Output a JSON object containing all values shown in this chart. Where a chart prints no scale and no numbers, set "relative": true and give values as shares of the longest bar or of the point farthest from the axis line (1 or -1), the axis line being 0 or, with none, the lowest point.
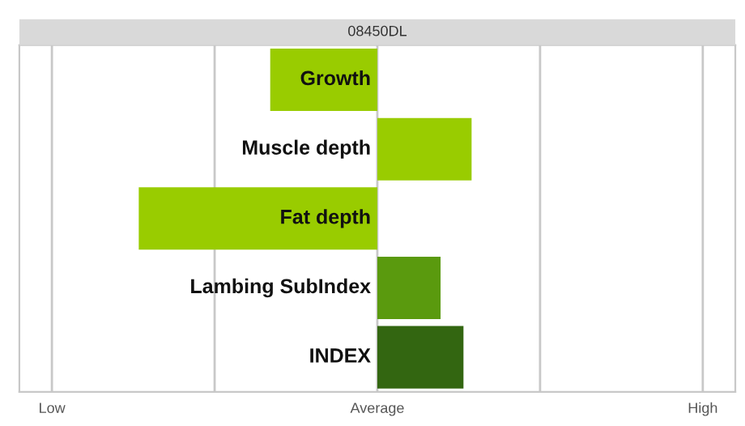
{
  "chart_data": {
    "type": "bar",
    "orientation": "horizontal",
    "relative": true,
    "title": "08450DL",
    "categories": [
      "Growth",
      "Muscle depth",
      "Fat depth",
      "Lambing SubIndex",
      "INDEX"
    ],
    "values": [
      -0.449,
      0.395,
      -1,
      0.265,
      0.361
    ],
    "colors": [
      "#99cc00",
      "#99cc00",
      "#99cc00",
      "#5a9a0e",
      "#336611"
    ],
    "ref_lines": [
      {
        "axis": "x",
        "value": -1.364,
        "label": "Low",
        "color": "#c8c8c8"
      },
      {
        "axis": "x",
        "value": -0.682,
        "label": null,
        "color": "#c8c8c8"
      },
      {
        "axis": "x",
        "value": 0,
        "label": "Average",
        "color": "#c8c8c8"
      },
      {
        "axis": "x",
        "value": 0.682,
        "label": null,
        "color": "#c8c8c8"
      },
      {
        "axis": "x",
        "value": 1.364,
        "label": "High",
        "color": "#c8c8c8"
      }
    ]
  }
}
